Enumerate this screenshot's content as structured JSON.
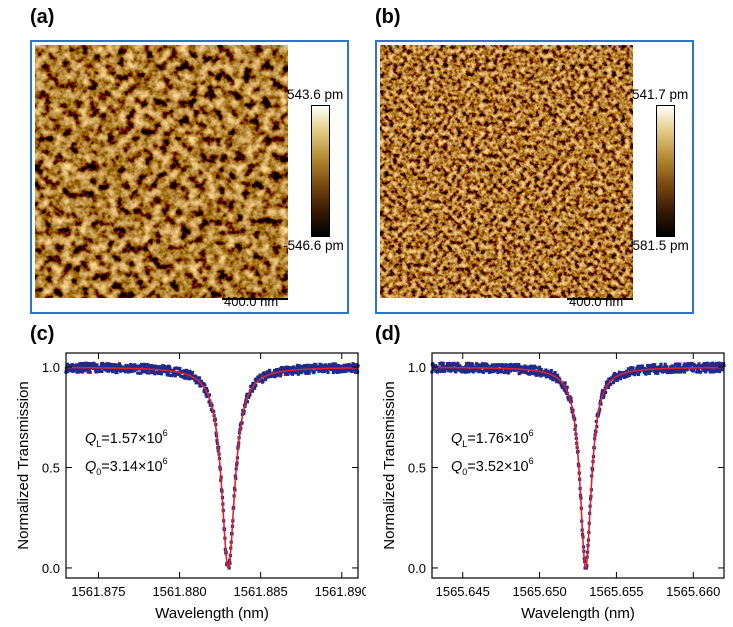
{
  "panels": {
    "a": {
      "label": "(a)",
      "scalebar": "400.0 nm",
      "colorbar": {
        "max": "543.6 pm",
        "min": "-546.6 pm"
      }
    },
    "b": {
      "label": "(b)",
      "scalebar": "400.0 nm",
      "colorbar": {
        "max": "541.7 pm",
        "min": "-581.5 pm"
      }
    },
    "c": {
      "label": "(c)",
      "annotation": {
        "ql": "=1.57×10",
        "ql_exp": "6",
        "q0": "=3.14×10",
        "q0_exp": "6"
      }
    },
    "d": {
      "label": "(d)",
      "annotation": {
        "ql": "=1.76×10",
        "ql_exp": "6",
        "q0": "=3.52×10",
        "q0_exp": "6"
      }
    }
  },
  "colors": {
    "frame": "#2f74c9",
    "data": "#1f2a8c",
    "fit": "#e0222a"
  },
  "chart_data": [
    {
      "type": "line",
      "panel": "c",
      "xlabel": "Wavelength (nm)",
      "ylabel": "Normalized Transmission",
      "xlim": [
        1561.873,
        1561.891
      ],
      "ylim": [
        -0.05,
        1.07
      ],
      "xticks": [
        1561.875,
        1561.88,
        1561.885,
        1561.89
      ],
      "xtick_labels": [
        "1561.875",
        "1561.880",
        "1561.885",
        "1561.890"
      ],
      "yticks": [
        0.0,
        0.5,
        1.0
      ],
      "ytick_labels": [
        "0.0",
        "0.5",
        "1.0"
      ],
      "resonance_center": 1561.883,
      "linewidth_fwhm": 0.001,
      "dip_min": 0.0,
      "baseline": 1.0,
      "series": [
        {
          "name": "measured",
          "style": "scatter"
        },
        {
          "name": "fit",
          "style": "line"
        }
      ]
    },
    {
      "type": "line",
      "panel": "d",
      "xlabel": "Wavelength (nm)",
      "ylabel": "Normalized Transmission",
      "xlim": [
        1565.643,
        1565.662
      ],
      "ylim": [
        -0.05,
        1.07
      ],
      "xticks": [
        1565.645,
        1565.65,
        1565.655,
        1565.66
      ],
      "xtick_labels": [
        "1565.645",
        "1565.650",
        "1565.655",
        "1565.660"
      ],
      "yticks": [
        0.0,
        0.5,
        1.0
      ],
      "ytick_labels": [
        "0.0",
        "0.5",
        "1.0"
      ],
      "resonance_center": 1565.653,
      "linewidth_fwhm": 0.00089,
      "dip_min": 0.0,
      "baseline": 1.0,
      "series": [
        {
          "name": "measured",
          "style": "scatter"
        },
        {
          "name": "fit",
          "style": "line"
        }
      ]
    }
  ]
}
